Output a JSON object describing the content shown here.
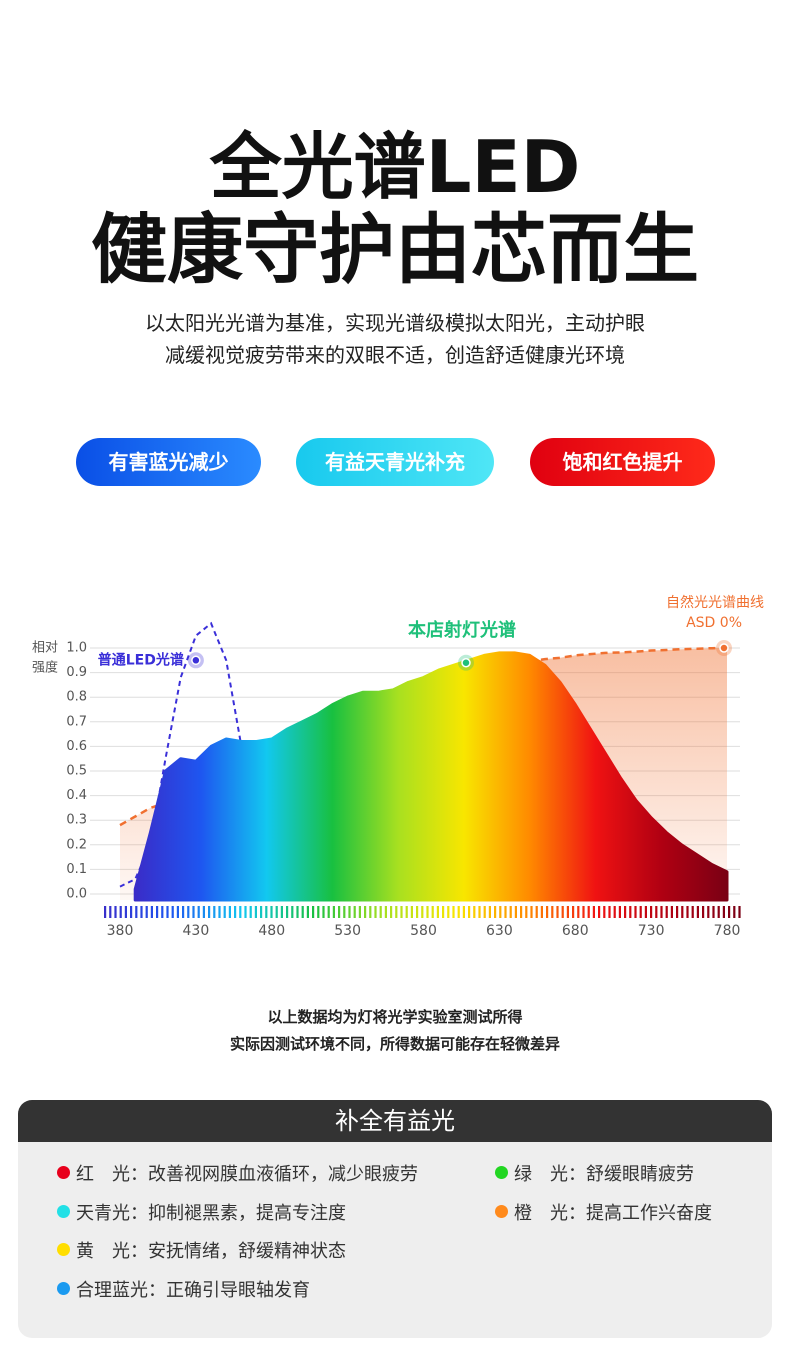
{
  "header": {
    "title_lines": [
      "全光谱LED",
      "健康守护由芯而生"
    ],
    "subtitle_lines": [
      "以太阳光光谱为基准，实现光谱级模拟太阳光，主动护眼",
      "减缓视觉疲劳带来的双眼不适，创造舒适健康光环境"
    ]
  },
  "tags": [
    {
      "text": "有害蓝光减少",
      "colors": [
        "#0a4fe6",
        "#2a8bff"
      ]
    },
    {
      "text": "有益天青光补充",
      "colors": [
        "#18c9ee",
        "#4fe6f6"
      ]
    },
    {
      "text": "饱和红色提升",
      "colors": [
        "#e00010",
        "#ff2a1a"
      ]
    }
  ],
  "chart_data": {
    "type": "spectrum",
    "y_label_lines": [
      "相对",
      "强度"
    ],
    "x": [
      380,
      390,
      400,
      410,
      420,
      430,
      440,
      450,
      460,
      470,
      480,
      490,
      500,
      510,
      520,
      530,
      540,
      550,
      560,
      570,
      580,
      590,
      600,
      610,
      620,
      630,
      640,
      650,
      660,
      670,
      680,
      690,
      700,
      710,
      720,
      730,
      740,
      750,
      760,
      770,
      780
    ],
    "series": [
      {
        "name": "自然光光谱曲线",
        "note": "ASD 0%",
        "kind": "area",
        "color": "#f07030",
        "values": [
          0.28,
          0.315,
          0.35,
          0.37,
          0.395,
          0.42,
          0.46,
          0.495,
          0.53,
          0.565,
          0.6,
          0.63,
          0.66,
          0.69,
          0.72,
          0.75,
          0.77,
          0.79,
          0.81,
          0.83,
          0.85,
          0.865,
          0.88,
          0.895,
          0.915,
          0.93,
          0.94,
          0.945,
          0.955,
          0.96,
          0.97,
          0.975,
          0.98,
          0.982,
          0.985,
          0.99,
          0.992,
          0.995,
          0.997,
          0.999,
          1.0
        ],
        "marker": {
          "x": 778,
          "y": 1.0
        }
      },
      {
        "name": "普通LED光谱",
        "kind": "dashed",
        "color": "#3a2fd8",
        "values": [
          0.03,
          0.06,
          0.2,
          0.55,
          0.88,
          1.05,
          1.1,
          0.95,
          0.6,
          0.2,
          null,
          null,
          null,
          null,
          null,
          null,
          null,
          null,
          null,
          null,
          null,
          null,
          null,
          null,
          null,
          null,
          null,
          null,
          null,
          null,
          null,
          null,
          null,
          null,
          null,
          null,
          null,
          null,
          null,
          null,
          null
        ],
        "marker": {
          "x": 430,
          "y": 0.95
        }
      },
      {
        "name": "本店射灯光谱",
        "kind": "spectrum",
        "color": "#1fc07a",
        "gradient": [
          "#3a2cc8",
          "#1e56f0",
          "#12c8f0",
          "#18c040",
          "#a8e020",
          "#f8e600",
          "#ff8a00",
          "#f01212",
          "#b00012",
          "#7a0014"
        ],
        "values": [
          null,
          0.02,
          0.25,
          0.5,
          0.55,
          0.54,
          0.6,
          0.63,
          0.62,
          0.62,
          0.63,
          0.67,
          0.7,
          0.73,
          0.77,
          0.8,
          0.82,
          0.82,
          0.83,
          0.86,
          0.88,
          0.91,
          0.93,
          0.95,
          0.97,
          0.98,
          0.98,
          0.97,
          0.93,
          0.86,
          0.77,
          0.67,
          0.57,
          0.47,
          0.38,
          0.31,
          0.25,
          0.2,
          0.16,
          0.12,
          0.09
        ],
        "marker": {
          "x": 608,
          "y": 0.94
        }
      }
    ],
    "xlim": [
      360,
      790
    ],
    "ylim": [
      0,
      1
    ],
    "xticks": [
      380,
      430,
      480,
      530,
      580,
      630,
      680,
      730,
      780
    ],
    "yticks": [
      {
        "value": 0,
        "label": "0.0"
      },
      0.1,
      0.2,
      0.3,
      0.4,
      0.5,
      0.6,
      0.7,
      0.8,
      0.9,
      {
        "value": 1,
        "label": "1.0"
      }
    ],
    "grid": true
  },
  "notes": [
    "以上数据均为灯将光学实验室测试所得",
    "实际因测试环境不同，所得数据可能存在轻微差异"
  ],
  "panel": {
    "title": "补全有益光",
    "rows": [
      [
        {
          "color": "#e8001c",
          "text": "红　光：改善视网膜血液循环，减少眼疲劳"
        },
        {
          "color": "#22d622",
          "text": "绿　光：舒缓眼睛疲劳"
        }
      ],
      [
        {
          "color": "#22e0e6",
          "text": "天青光：抑制褪黑素，提高专注度"
        },
        {
          "color": "#ff8a1c",
          "text": "橙　光：提高工作兴奋度"
        }
      ],
      [
        {
          "color": "#ffde00",
          "text": "黄　光：安抚情绪，舒缓精神状态"
        }
      ],
      [
        {
          "color": "#1a9af0",
          "text": "合理蓝光：正确引导眼轴发育"
        }
      ]
    ]
  }
}
